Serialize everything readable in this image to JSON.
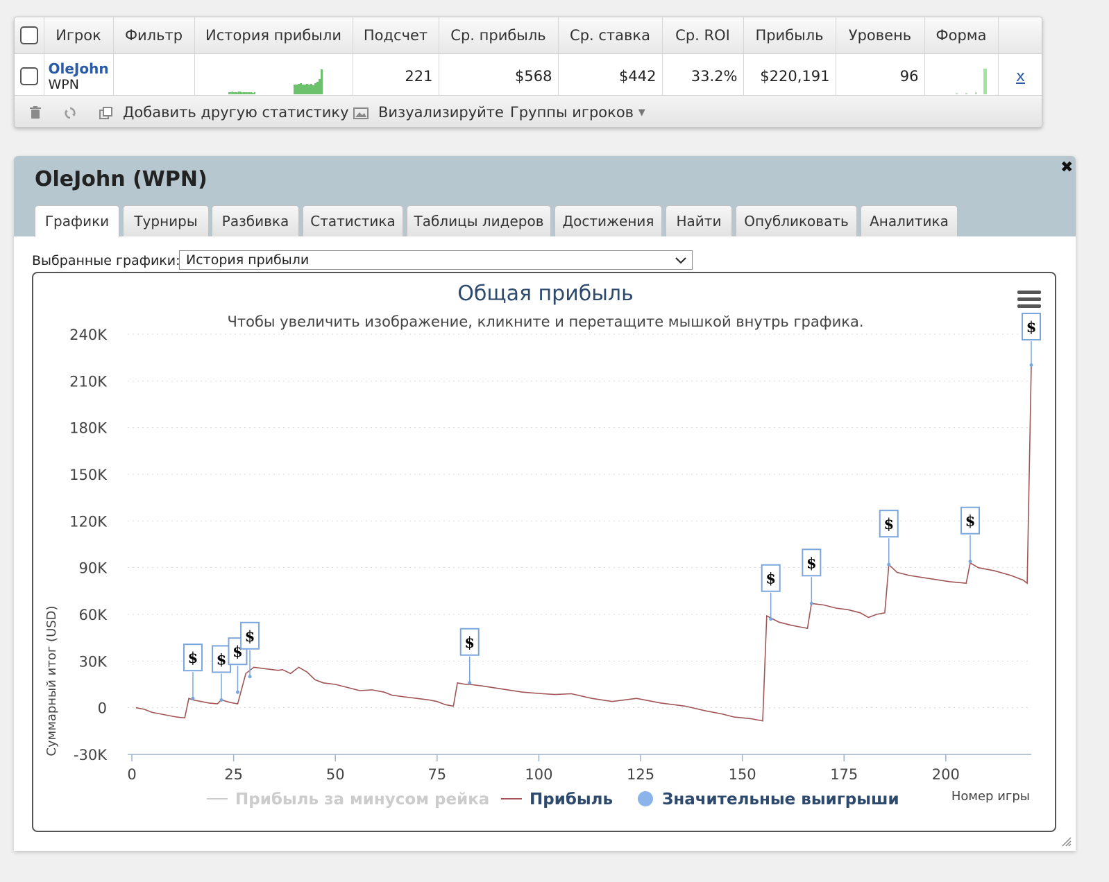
{
  "stats_table": {
    "headers": [
      "Игрок",
      "Фильтр",
      "История прибыли",
      "Подсчет",
      "Ср. прибыль",
      "Ср. ставка",
      "Ср. ROI",
      "Прибыль",
      "Уровень",
      "Форма"
    ],
    "row": {
      "player_name": "OleJohn",
      "network": "WPN",
      "filter": "",
      "count": "221",
      "avg_profit": "$568",
      "avg_stake": "$442",
      "avg_roi": "33.2%",
      "profit": "$220,191",
      "level": "96",
      "remove": "x"
    },
    "sparkline_color": "#6cc26c"
  },
  "toolbar": {
    "delete_icon": "trash-icon",
    "refresh_icon": "refresh-icon",
    "add_stats_label": "Добавить другую статистику",
    "visualize_label": "Визуализируйте",
    "player_groups_label": "Группы игроков"
  },
  "panel": {
    "title": "OleJohn (WPN)",
    "close": "✖",
    "tabs": [
      "Графики",
      "Турниры",
      "Разбивка",
      "Статистика",
      "Таблицы лидеров",
      "Достижения",
      "Найти",
      "Опубликовать",
      "Аналитика"
    ],
    "active_tab": 0,
    "header_color": "#b6c7d0"
  },
  "chart_select": {
    "label": "Выбранные графики:",
    "value": "История прибыли"
  },
  "chart_data": {
    "type": "line",
    "title": "Общая прибыль",
    "subtitle": "Чтобы увеличить изображение, кликните и перетащите мышкой внутрь графика.",
    "ylabel": "Суммарный итог (USD)",
    "xlabel": "Номер игры",
    "ylim": [
      -30000,
      240000
    ],
    "xlim": [
      0,
      221
    ],
    "y_ticks": [
      -30000,
      0,
      30000,
      60000,
      90000,
      120000,
      150000,
      180000,
      210000,
      240000
    ],
    "y_tick_labels": [
      "-30K",
      "0",
      "30K",
      "60K",
      "90K",
      "120K",
      "150K",
      "180K",
      "210K",
      "240K"
    ],
    "x_ticks": [
      0,
      25,
      50,
      75,
      100,
      125,
      150,
      175,
      200
    ],
    "x_tick_labels": [
      "0",
      "25",
      "50",
      "75",
      "100",
      "125",
      "150",
      "175",
      "200"
    ],
    "grid": true,
    "legend_position": "bottom",
    "legend": [
      "Прибыль за минусом рейка",
      "Прибыль",
      "Значительные выигрыши"
    ],
    "series": [
      {
        "name": "Прибыль",
        "color": "#a05454",
        "x": [
          1,
          3,
          5,
          7,
          9,
          11,
          13,
          14,
          15,
          17,
          19,
          21,
          22,
          24,
          26,
          28,
          30,
          33,
          36,
          37,
          39,
          41,
          43,
          45,
          47,
          50,
          53,
          56,
          59,
          62,
          64,
          67,
          70,
          73,
          75,
          77,
          79,
          80,
          82,
          83,
          86,
          91,
          96,
          101,
          104,
          108,
          113,
          118,
          124,
          130,
          136,
          141,
          145,
          148,
          152,
          155,
          156,
          159,
          162,
          164,
          166,
          167,
          170,
          173,
          176,
          179,
          181,
          183,
          185,
          186,
          188,
          191,
          196,
          201,
          205,
          206,
          208,
          212,
          216,
          219,
          220,
          221
        ],
        "y": [
          0,
          -1000,
          -3000,
          -4000,
          -5000,
          -6000,
          -6500,
          6000,
          5000,
          4000,
          3000,
          2500,
          5000,
          3500,
          2500,
          22000,
          26000,
          25000,
          24000,
          24500,
          22000,
          26000,
          23000,
          18000,
          16000,
          15000,
          13000,
          11000,
          11500,
          10000,
          8000,
          7000,
          6000,
          5000,
          4000,
          2000,
          1000,
          16000,
          15000,
          15000,
          14000,
          12000,
          10000,
          9000,
          8500,
          9000,
          6000,
          4000,
          6000,
          3000,
          1000,
          -2000,
          -4000,
          -6000,
          -7000,
          -8500,
          59000,
          55000,
          53000,
          52000,
          51000,
          67000,
          66000,
          64000,
          63000,
          61000,
          58000,
          60000,
          61000,
          92000,
          87000,
          85000,
          83000,
          81000,
          80000,
          93000,
          90000,
          88000,
          85000,
          82000,
          80000,
          220191
        ]
      }
    ],
    "big_wins": [
      {
        "x": 15,
        "y": 6000,
        "label": "$"
      },
      {
        "x": 22,
        "y": 5000,
        "label": "$"
      },
      {
        "x": 26,
        "y": 10000,
        "label": "$"
      },
      {
        "x": 29,
        "y": 20000,
        "label": "$"
      },
      {
        "x": 83,
        "y": 16000,
        "label": "$"
      },
      {
        "x": 157,
        "y": 57000,
        "label": "$"
      },
      {
        "x": 167,
        "y": 67000,
        "label": "$"
      },
      {
        "x": 186,
        "y": 92000,
        "label": "$"
      },
      {
        "x": 206,
        "y": 94000,
        "label": "$"
      },
      {
        "x": 221,
        "y": 220191,
        "label": "$"
      }
    ]
  }
}
